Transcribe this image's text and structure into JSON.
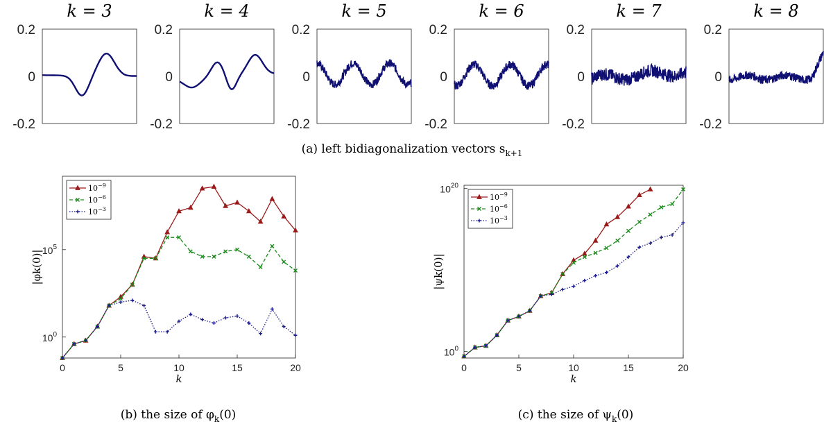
{
  "captions": {
    "a": "(a) left bidiagonalization vectors s",
    "a_sub": "k+1",
    "b": "(b) the size of φ",
    "b_tail": "(0)",
    "c": "(c) the size of ψ",
    "c_tail": "(0)"
  },
  "colors": {
    "series1": "#9b1b1b",
    "series2": "#1a8a1a",
    "series3": "#1c1c8c",
    "vector": "#101073"
  },
  "chart_data": [
    {
      "type": "line",
      "panels": [
        {
          "title": "k = 3",
          "kind": "smooth3"
        },
        {
          "title": "k = 4",
          "kind": "smooth4"
        },
        {
          "title": "k = 5",
          "kind": "noisy5"
        },
        {
          "title": "k = 6",
          "kind": "noisy6"
        },
        {
          "title": "k = 7",
          "kind": "noisy7"
        },
        {
          "title": "k = 8",
          "kind": "noisy8"
        }
      ],
      "yticks": [
        "0.2",
        "0",
        "-0.2"
      ],
      "ylim": [
        -0.2,
        0.2
      ]
    },
    {
      "type": "line",
      "ylabel": "|φk(0)|",
      "xlabel": "k",
      "yscale": "log",
      "xlim": [
        0,
        20
      ],
      "xticks": [
        "0",
        "5",
        "10",
        "15",
        "20"
      ],
      "yticks": [
        {
          "base": "10",
          "exp": "5"
        },
        {
          "base": "10",
          "exp": "0"
        }
      ],
      "legend": [
        "10",
        "10",
        "10"
      ],
      "legend_exp": [
        "−9",
        "−6",
        "−3"
      ],
      "series": [
        {
          "marker": "triangle",
          "log10": [
            -1.2,
            -0.4,
            -0.2,
            0.6,
            1.8,
            2.3,
            3.0,
            4.6,
            4.5,
            6.0,
            7.2,
            7.4,
            8.5,
            8.6,
            7.5,
            7.7,
            7.2,
            6.6,
            7.9,
            6.9,
            6.1
          ]
        },
        {
          "marker": "x",
          "log10": [
            -1.2,
            -0.4,
            -0.2,
            0.6,
            1.8,
            2.2,
            3.0,
            4.5,
            4.5,
            5.7,
            5.7,
            4.9,
            4.6,
            4.6,
            4.9,
            5.0,
            4.6,
            4.0,
            5.2,
            4.3,
            3.8
          ]
        },
        {
          "marker": "plus",
          "log10": [
            -1.2,
            -0.4,
            -0.2,
            0.6,
            1.8,
            2.0,
            2.1,
            1.8,
            0.3,
            0.3,
            0.9,
            1.3,
            1.0,
            0.8,
            1.1,
            1.2,
            0.8,
            0.2,
            1.6,
            0.6,
            0.1
          ]
        }
      ]
    },
    {
      "type": "line",
      "ylabel": "|ψk(0)|",
      "xlabel": "k",
      "yscale": "log",
      "xlim": [
        0,
        20
      ],
      "xticks": [
        "0",
        "5",
        "10",
        "15",
        "20"
      ],
      "yticks": [
        {
          "base": "10",
          "exp": "20"
        },
        {
          "base": "10",
          "exp": "0"
        }
      ],
      "legend": [
        "10",
        "10",
        "10"
      ],
      "legend_exp": [
        "−9",
        "−6",
        "−3"
      ],
      "series": [
        {
          "marker": "triangle",
          "log10": [
            -0.6,
            0.5,
            0.7,
            2.0,
            3.8,
            4.3,
            5.0,
            6.8,
            7.2,
            9.5,
            11.2,
            12.0,
            13.6,
            15.6,
            16.5,
            17.8,
            19.2,
            19.9
          ]
        },
        {
          "marker": "x",
          "log10": [
            -0.6,
            0.5,
            0.7,
            2.0,
            3.8,
            4.3,
            5.0,
            6.8,
            7.2,
            9.5,
            10.9,
            11.6,
            12.1,
            12.7,
            13.6,
            14.8,
            15.9,
            16.8,
            17.7,
            18.1,
            19.9
          ]
        },
        {
          "marker": "plus",
          "log10": [
            -0.6,
            0.5,
            0.7,
            2.0,
            3.8,
            4.3,
            5.0,
            6.8,
            7.0,
            7.6,
            8.0,
            8.7,
            9.3,
            9.7,
            10.5,
            11.6,
            12.8,
            13.3,
            14.0,
            14.3,
            15.8
          ]
        }
      ]
    }
  ]
}
